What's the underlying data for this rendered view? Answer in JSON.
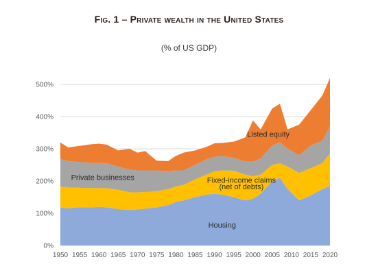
{
  "chart_data": {
    "type": "area",
    "stacked": true,
    "title": "Fig. 1 – Private wealth in the United States",
    "subtitle": "(% of US GDP)",
    "xlabel": "",
    "ylabel": "",
    "xlim": [
      1950,
      2020
    ],
    "ylim": [
      0,
      500
    ],
    "y_ticks": [
      "0%",
      "100%",
      "200%",
      "300%",
      "400%",
      "500%"
    ],
    "y_tick_values": [
      0,
      100,
      200,
      300,
      400,
      500
    ],
    "x_ticks": [
      "1950",
      "1955",
      "1960",
      "1965",
      "1970",
      "1975",
      "1980",
      "1985",
      "1990",
      "1995",
      "2000",
      "2005",
      "2010",
      "2015",
      "2020"
    ],
    "x_tick_values": [
      1950,
      1955,
      1960,
      1965,
      1970,
      1975,
      1980,
      1985,
      1990,
      1995,
      2000,
      2005,
      2010,
      2015,
      2020
    ],
    "grid": "horizontal",
    "legend": "inline annotations",
    "x": [
      1950,
      1952,
      1955,
      1958,
      1960,
      1962,
      1965,
      1968,
      1970,
      1972,
      1975,
      1978,
      1980,
      1982,
      1985,
      1988,
      1990,
      1992,
      1995,
      1998,
      2000,
      2002,
      2005,
      2007,
      2009,
      2012,
      2015,
      2018,
      2020
    ],
    "series": [
      {
        "name": "Housing",
        "color": "#8eaadb",
        "values": [
          118,
          115,
          119,
          118,
          120,
          118,
          113,
          110,
          112,
          114,
          118,
          125,
          135,
          140,
          150,
          158,
          160,
          158,
          150,
          140,
          145,
          160,
          200,
          210,
          175,
          140,
          155,
          175,
          185
        ]
      },
      {
        "name": "Fixed-income claims (net of debts)",
        "color": "#ffc000",
        "values": [
          65,
          65,
          60,
          60,
          58,
          60,
          60,
          55,
          53,
          52,
          50,
          50,
          48,
          48,
          55,
          62,
          70,
          75,
          82,
          80,
          70,
          60,
          50,
          45,
          70,
          85,
          85,
          80,
          100
        ]
      },
      {
        "name": "Private businesses",
        "color": "#a5a5a5",
        "values": [
          85,
          82,
          80,
          78,
          78,
          77,
          72,
          70,
          68,
          67,
          65,
          55,
          50,
          45,
          45,
          48,
          45,
          45,
          40,
          40,
          45,
          50,
          60,
          65,
          55,
          55,
          70,
          70,
          85
        ]
      },
      {
        "name": "Listed equity",
        "color": "#ed7d31",
        "values": [
          52,
          42,
          50,
          58,
          60,
          58,
          50,
          65,
          55,
          60,
          30,
          32,
          45,
          55,
          45,
          38,
          42,
          40,
          50,
          75,
          128,
          90,
          115,
          120,
          60,
          95,
          110,
          140,
          150
        ]
      }
    ],
    "annotations": [
      {
        "text": "Listed equity",
        "x": 2004,
        "y": 337
      },
      {
        "text": "Private businesses",
        "x": 1961,
        "y": 203
      },
      {
        "text": "Fixed-income claims",
        "x": 1997,
        "y": 195
      },
      {
        "text": "(net of debts)",
        "x": 1997,
        "y": 175
      },
      {
        "text": "Housing",
        "x": 1992,
        "y": 55
      }
    ]
  }
}
